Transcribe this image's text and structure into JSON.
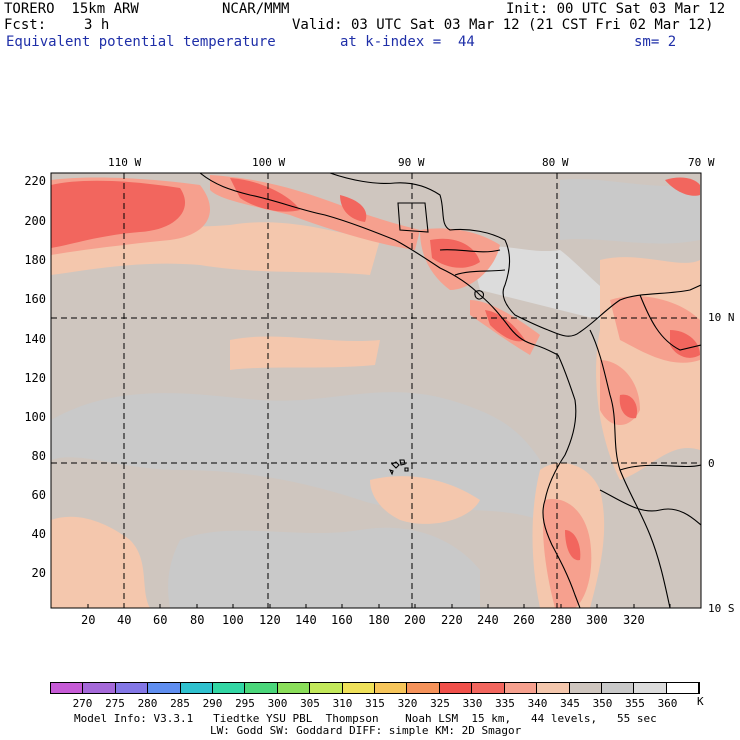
{
  "header": {
    "model": "TORERO  15km ARW",
    "center": "NCAR/MMM",
    "init": "Init: 00 UTC Sat 03 Mar 12",
    "fcst_label": "Fcst:",
    "fcst_value": "3 h",
    "valid": "Valid: 03 UTC Sat 03 Mar 12 (21 CST Fri 02 Mar 12)",
    "field": "Equivalent potential temperature",
    "level": "at k-index =  44",
    "smoothing": "sm= 2"
  },
  "map": {
    "lon_labels": [
      "110 W",
      "100 W",
      "90 W",
      "80 W",
      "70 W"
    ],
    "lat_labels": [
      "10 N",
      "0",
      "10 S"
    ],
    "x_ticks": [
      "20",
      "40",
      "60",
      "80",
      "100",
      "120",
      "140",
      "160",
      "180",
      "200",
      "220",
      "240",
      "260",
      "280",
      "300",
      "320"
    ],
    "y_ticks": [
      "220",
      "200",
      "180",
      "160",
      "140",
      "120",
      "100",
      "80",
      "60",
      "40",
      "20"
    ]
  },
  "colorbar": {
    "units": "K",
    "labels": [
      "270",
      "275",
      "280",
      "285",
      "290",
      "295",
      "300",
      "305",
      "310",
      "315",
      "320",
      "325",
      "330",
      "335",
      "340",
      "345",
      "350",
      "355",
      "360"
    ],
    "colors": [
      "#c65bd6",
      "#a569d9",
      "#8377e6",
      "#5f8ef0",
      "#2fc1cf",
      "#32d6a4",
      "#4ad67a",
      "#8ade5a",
      "#c2e85a",
      "#efe15a",
      "#f6c55a",
      "#f5925a",
      "#f0504a",
      "#f2665e",
      "#f6a08e",
      "#f4c7ad",
      "#cfc6bf",
      "#c9c9c9",
      "#dcdcdc",
      "#ffffff"
    ]
  },
  "footer": {
    "line1": "Model Info: V3.3.1   Tiedtke YSU PBL  Thompson    Noah LSM  15 km,   44 levels,   55 sec",
    "line2": "LW: Godd SW: Goddard DIFF: simple KM: 2D Smagor"
  }
}
